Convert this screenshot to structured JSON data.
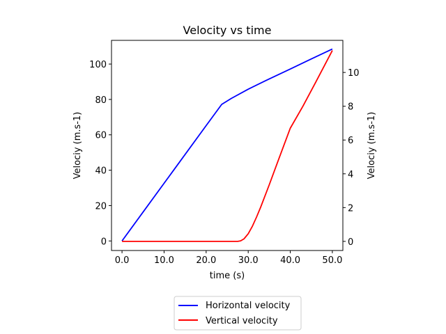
{
  "chart_data": {
    "type": "line",
    "title": "Velocity vs time",
    "xlabel": "time (s)",
    "ylabel_left": "Velociy (m.s-1)",
    "ylabel_right": "Velociy (m.s-1)",
    "xlim": [
      -2.5,
      52.5
    ],
    "ylim_left": [
      -5.4,
      113.4
    ],
    "ylim_right": [
      -0.54,
      11.9
    ],
    "x_ticks": [
      0,
      10,
      20,
      30,
      40,
      50
    ],
    "x_tick_labels": [
      "0.0",
      "10.0",
      "20.0",
      "30.0",
      "40.0",
      "50.0"
    ],
    "y_left_ticks": [
      0,
      20,
      40,
      60,
      80,
      100
    ],
    "y_left_tick_labels": [
      "0",
      "20",
      "40",
      "60",
      "80",
      "100"
    ],
    "y_right_ticks": [
      0,
      2,
      4,
      6,
      8,
      10
    ],
    "y_right_tick_labels": [
      "0",
      "2",
      "4",
      "6",
      "8",
      "10"
    ],
    "grid": false,
    "legend_placement": "below-center",
    "series": [
      {
        "name": "Horizontal velocity",
        "axis": "left",
        "color": "#0000ff",
        "x": [
          0,
          5,
          10,
          15,
          20,
          23.7,
          26,
          30,
          35,
          40,
          45,
          50
        ],
        "y": [
          0,
          16.3,
          32.6,
          48.9,
          65.2,
          77.2,
          80.6,
          85.8,
          91.6,
          97.2,
          102.9,
          108.5
        ]
      },
      {
        "name": "Vertical velocity",
        "axis": "right",
        "color": "#ff0000",
        "x": [
          0,
          10,
          20,
          27.5,
          28.2,
          29,
          30,
          31,
          32,
          33,
          34,
          35,
          37,
          40,
          43,
          46,
          50
        ],
        "y": [
          0,
          0,
          0,
          0,
          0.03,
          0.15,
          0.45,
          0.9,
          1.45,
          2.05,
          2.7,
          3.35,
          4.7,
          6.7,
          8.0,
          9.4,
          11.3
        ]
      }
    ]
  }
}
